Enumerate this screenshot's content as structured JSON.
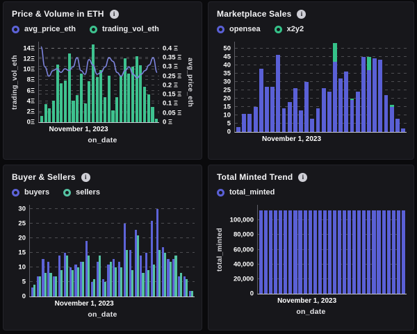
{
  "ui": {
    "info_icon_glyph": "i"
  },
  "chart_data": [
    {
      "title": "Price & Volume in ETH",
      "type": "bar",
      "x_tick_label": "November 1, 2023",
      "xlabel": "on_date",
      "ylabel_left": "trading_vol_eth",
      "ylabel_right": "avg_price_eth",
      "legend": [
        {
          "label": "avg_price_eth",
          "color": "#5d63d8"
        },
        {
          "label": "trading_vol_eth",
          "color": "#3ec28f"
        }
      ],
      "y_left": {
        "axis_max": 15.3,
        "ticks": [
          {
            "value": 14,
            "label": "14Ξ"
          },
          {
            "value": 12,
            "label": "12Ξ"
          },
          {
            "value": 10,
            "label": "10Ξ"
          },
          {
            "value": 8,
            "label": "8Ξ"
          },
          {
            "value": 6,
            "label": "6Ξ"
          },
          {
            "value": 4,
            "label": "4Ξ"
          },
          {
            "value": 2,
            "label": "2Ξ"
          },
          {
            "value": 0,
            "label": "0Ξ"
          }
        ]
      },
      "y_right": {
        "axis_max": 0.437,
        "ticks": [
          {
            "value": 0.4,
            "label": "0.4 Ξ"
          },
          {
            "value": 0.35,
            "label": "0.35 Ξ"
          },
          {
            "value": 0.3,
            "label": "0.3 Ξ"
          },
          {
            "value": 0.25,
            "label": "0.25 Ξ"
          },
          {
            "value": 0.2,
            "label": "0.2 Ξ"
          },
          {
            "value": 0.15,
            "label": "0.15 Ξ"
          },
          {
            "value": 0.1,
            "label": "0.1 Ξ"
          },
          {
            "value": 0.05,
            "label": "0.05 Ξ"
          },
          {
            "value": 0,
            "label": "0 Ξ"
          }
        ]
      },
      "series": [
        {
          "name": "trading_vol_eth",
          "type": "bar",
          "axis": "left",
          "color": "#3ec28f",
          "values": [
            1.2,
            3.4,
            2.6,
            4.1,
            11.0,
            7.4,
            7.9,
            13.0,
            4.1,
            5.2,
            9.2,
            3.6,
            7.8,
            14.8,
            8.6,
            9.9,
            4.7,
            8.8,
            2.3,
            4.7,
            8.8,
            12.2,
            9.3,
            10.6,
            12.5,
            10.8,
            6.7,
            5.3,
            2.9,
            0.7
          ]
        },
        {
          "name": "avg_price_eth",
          "type": "line",
          "axis": "right",
          "color": "#7d84de",
          "values": [
            0.41,
            0.3,
            0.25,
            0.28,
            0.29,
            0.27,
            0.29,
            0.28,
            0.3,
            0.35,
            0.28,
            0.26,
            0.34,
            0.31,
            0.26,
            0.27,
            0.3,
            0.35,
            0.33,
            0.27,
            0.25,
            0.28,
            0.3,
            0.26,
            0.24,
            0.26,
            0.28,
            0.31,
            0.35,
            0.27
          ]
        }
      ]
    },
    {
      "title": "Marketplace Sales",
      "type": "stacked-bar",
      "x_tick_label": "November 1, 2023",
      "legend": [
        {
          "label": "opensea",
          "color": "#5a60d6"
        },
        {
          "label": "x2y2",
          "color": "#35c289"
        }
      ],
      "y_left": {
        "axis_max": 54,
        "ticks": [
          {
            "value": 50,
            "label": "50"
          },
          {
            "value": 45,
            "label": "45"
          },
          {
            "value": 40,
            "label": "40"
          },
          {
            "value": 35,
            "label": "35"
          },
          {
            "value": 30,
            "label": "30"
          },
          {
            "value": 25,
            "label": "25"
          },
          {
            "value": 20,
            "label": "20"
          },
          {
            "value": 15,
            "label": "15"
          },
          {
            "value": 10,
            "label": "10"
          },
          {
            "value": 5,
            "label": "5"
          },
          {
            "value": 0,
            "label": "0"
          }
        ]
      },
      "series": [
        {
          "name": "opensea",
          "type": "bar",
          "axis": "left",
          "color": "#5a60d6",
          "values": [
            3,
            11,
            11,
            15,
            38,
            27,
            27,
            46,
            14,
            18,
            26,
            13,
            30,
            8,
            14,
            26,
            24,
            42,
            32,
            36,
            19,
            24,
            45,
            37,
            44,
            43,
            22,
            15,
            8,
            2
          ]
        },
        {
          "name": "x2y2",
          "type": "bar",
          "axis": "left",
          "color": "#35c289",
          "values": [
            0,
            0,
            0,
            0,
            0,
            0,
            0,
            0,
            0,
            0,
            0,
            0,
            0,
            0,
            0,
            0,
            0,
            11,
            0,
            0,
            1,
            0,
            0,
            8,
            0,
            0,
            0,
            1,
            0,
            0
          ]
        }
      ]
    },
    {
      "title": "Buyer & Sellers",
      "type": "grouped-bar",
      "x_tick_label": "November 1, 2023",
      "xlabel": "on_date",
      "legend": [
        {
          "label": "buyers",
          "color": "#5d63d8"
        },
        {
          "label": "sellers",
          "color": "#55c2a2"
        }
      ],
      "y_left": {
        "axis_max": 31.5,
        "ticks": [
          {
            "value": 30,
            "label": "30"
          },
          {
            "value": 25,
            "label": "25"
          },
          {
            "value": 20,
            "label": "20"
          },
          {
            "value": 15,
            "label": "15"
          },
          {
            "value": 10,
            "label": "10"
          },
          {
            "value": 5,
            "label": "5"
          },
          {
            "value": 0,
            "label": "0"
          }
        ]
      },
      "series": [
        {
          "name": "buyers",
          "type": "bar",
          "axis": "left",
          "color": "#5d63d8",
          "values": [
            3,
            7,
            13,
            12,
            7,
            14,
            15,
            10,
            11,
            12,
            19,
            5,
            12,
            6,
            11,
            13,
            12,
            25,
            16,
            23,
            14,
            15,
            26,
            30,
            17,
            13,
            13,
            7,
            7,
            2
          ]
        },
        {
          "name": "sellers",
          "type": "bar",
          "axis": "left",
          "color": "#55c2a2",
          "values": [
            4,
            7,
            8,
            8,
            7,
            9,
            14,
            9,
            10,
            12,
            14,
            6,
            14,
            5,
            12,
            10,
            10,
            16,
            9,
            21,
            8,
            9,
            11,
            16,
            15,
            12,
            14,
            8,
            6,
            2
          ]
        }
      ]
    },
    {
      "title": "Total Minted Trend",
      "type": "bar",
      "x_tick_label": "November 1, 2023",
      "xlabel": "on_date",
      "ylabel_left": "total_minted",
      "legend": [
        {
          "label": "total_minted",
          "color": "#5a60d6"
        }
      ],
      "y_left": {
        "axis_max": 121000,
        "ticks": [
          {
            "value": 100000,
            "label": "100,000"
          },
          {
            "value": 80000,
            "label": "80,000"
          },
          {
            "value": 60000,
            "label": "60,000"
          },
          {
            "value": 40000,
            "label": "40,000"
          },
          {
            "value": 20000,
            "label": "20,000"
          },
          {
            "value": 0,
            "label": "0"
          }
        ]
      },
      "series": [
        {
          "name": "total_minted",
          "type": "bar",
          "axis": "left",
          "color": "#5a60d6",
          "values": [
            113000,
            113000,
            113000,
            113000,
            113000,
            113000,
            113000,
            113000,
            113000,
            113000,
            113000,
            113000,
            113000,
            113000,
            113000,
            113000,
            113000,
            113000,
            113000,
            113000,
            113000,
            113000,
            113000,
            113000,
            113000,
            113000,
            113000,
            113000,
            113000,
            113000
          ]
        }
      ]
    }
  ]
}
